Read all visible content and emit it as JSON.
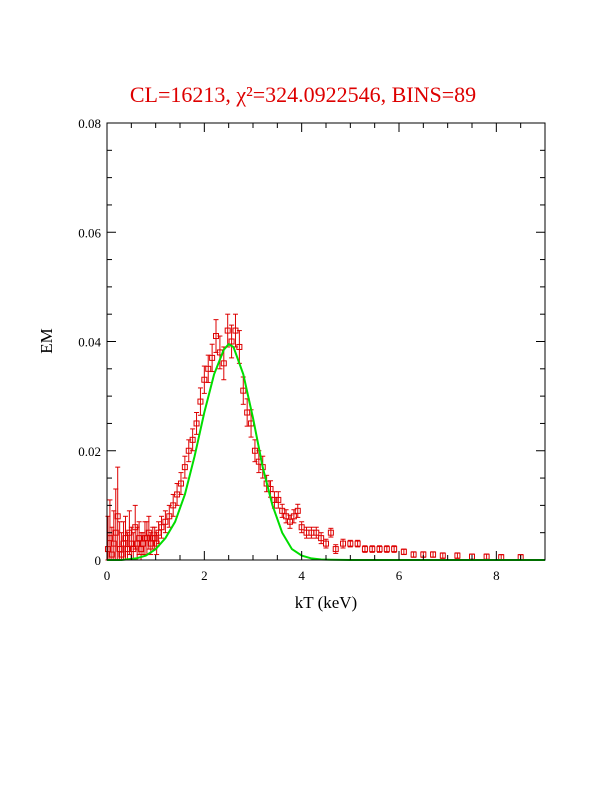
{
  "chart_data": {
    "type": "scatter",
    "title": "CL=16213,  χ²=324.0922546,  BINS=89",
    "xlabel": "kT  (keV)",
    "ylabel": "EM",
    "xlim": [
      0,
      9
    ],
    "ylim": [
      0,
      0.08
    ],
    "x_ticks": [
      0,
      2,
      4,
      6,
      8
    ],
    "x_tick_labels": [
      "0",
      "2",
      "4",
      "6",
      "8"
    ],
    "y_ticks": [
      0,
      0.02,
      0.04,
      0.06,
      0.08
    ],
    "y_tick_labels": [
      "0",
      "0.02",
      "0.04",
      "0.06",
      "0.08"
    ],
    "grid": false,
    "colors": {
      "data": "#dd0000",
      "model": "#00dd00",
      "title": "#dd0000",
      "axes": "#000000"
    },
    "series": [
      {
        "kind": "points-with-errors",
        "x": [
          0.02,
          0.06,
          0.1,
          0.14,
          0.18,
          0.22,
          0.26,
          0.3,
          0.34,
          0.38,
          0.42,
          0.46,
          0.5,
          0.54,
          0.58,
          0.62,
          0.66,
          0.7,
          0.74,
          0.78,
          0.82,
          0.86,
          0.9,
          0.94,
          0.98,
          1.02,
          1.06,
          1.12,
          1.2,
          1.28,
          1.36,
          1.44,
          1.52,
          1.6,
          1.68,
          1.76,
          1.84,
          1.92,
          2.0,
          2.08,
          2.16,
          2.24,
          2.32,
          2.4,
          2.48,
          2.56,
          2.64,
          2.72,
          2.8,
          2.88,
          2.96,
          3.04,
          3.12,
          3.2,
          3.28,
          3.36,
          3.44,
          3.52,
          3.6,
          3.68,
          3.76,
          3.84,
          3.92,
          4.0,
          4.1,
          4.2,
          4.3,
          4.4,
          4.5,
          4.6,
          4.7,
          4.85,
          5.0,
          5.15,
          5.3,
          5.45,
          5.6,
          5.75,
          5.9,
          6.1,
          6.3,
          6.5,
          6.7,
          6.9,
          7.2,
          7.5,
          7.8,
          8.1,
          8.5
        ],
        "y": [
          0.002,
          0.004,
          0.001,
          0.003,
          0.005,
          0.008,
          0.002,
          0.001,
          0.003,
          0.004,
          0.002,
          0.005,
          0.003,
          0.002,
          0.006,
          0.003,
          0.004,
          0.002,
          0.003,
          0.004,
          0.004,
          0.005,
          0.003,
          0.004,
          0.004,
          0.003,
          0.005,
          0.006,
          0.007,
          0.008,
          0.01,
          0.012,
          0.014,
          0.017,
          0.02,
          0.022,
          0.025,
          0.029,
          0.033,
          0.035,
          0.037,
          0.041,
          0.038,
          0.036,
          0.042,
          0.04,
          0.042,
          0.039,
          0.031,
          0.027,
          0.025,
          0.02,
          0.018,
          0.017,
          0.014,
          0.013,
          0.011,
          0.011,
          0.009,
          0.008,
          0.007,
          0.008,
          0.009,
          0.006,
          0.005,
          0.005,
          0.005,
          0.004,
          0.003,
          0.005,
          0.002,
          0.003,
          0.003,
          0.003,
          0.002,
          0.002,
          0.002,
          0.002,
          0.002,
          0.0015,
          0.001,
          0.001,
          0.001,
          0.0008,
          0.0008,
          0.0006,
          0.0006,
          0.0005,
          0.0005
        ],
        "err": [
          0.006,
          0.007,
          0.005,
          0.006,
          0.008,
          0.009,
          0.005,
          0.004,
          0.004,
          0.004,
          0.003,
          0.004,
          0.003,
          0.003,
          0.004,
          0.003,
          0.003,
          0.003,
          0.002,
          0.003,
          0.003,
          0.003,
          0.002,
          0.002,
          0.002,
          0.002,
          0.002,
          0.002,
          0.002,
          0.002,
          0.002,
          0.002,
          0.002,
          0.002,
          0.002,
          0.002,
          0.002,
          0.0025,
          0.0025,
          0.0025,
          0.0025,
          0.003,
          0.003,
          0.003,
          0.003,
          0.003,
          0.003,
          0.003,
          0.0025,
          0.0025,
          0.0025,
          0.002,
          0.002,
          0.002,
          0.0015,
          0.0015,
          0.0015,
          0.0015,
          0.0012,
          0.0012,
          0.0012,
          0.0012,
          0.0012,
          0.001,
          0.001,
          0.001,
          0.001,
          0.001,
          0.0008,
          0.0008,
          0.0008,
          0.0008,
          0.0006,
          0.0006,
          0.0006,
          0.0006,
          0.0006,
          0.0006,
          0.0006,
          0.0005,
          0.0005,
          0.0005,
          0.0005,
          0.0005,
          0.0005,
          0.0005,
          0.0005,
          0.0005,
          0.0005
        ]
      },
      {
        "kind": "model-curve",
        "x": [
          0,
          0.3,
          0.6,
          0.8,
          1.0,
          1.2,
          1.4,
          1.6,
          1.8,
          2.0,
          2.2,
          2.4,
          2.5,
          2.6,
          2.8,
          3.0,
          3.2,
          3.4,
          3.6,
          3.8,
          4.0,
          4.2,
          4.4,
          4.6,
          5.0,
          6.0,
          7.0,
          8.0,
          9.0
        ],
        "y": [
          0,
          0,
          0.0003,
          0.0008,
          0.002,
          0.004,
          0.007,
          0.012,
          0.019,
          0.027,
          0.034,
          0.0385,
          0.0395,
          0.039,
          0.034,
          0.026,
          0.017,
          0.01,
          0.005,
          0.002,
          0.0008,
          0.0003,
          0.0001,
          3e-05,
          0,
          0,
          0,
          0,
          0
        ]
      }
    ]
  }
}
